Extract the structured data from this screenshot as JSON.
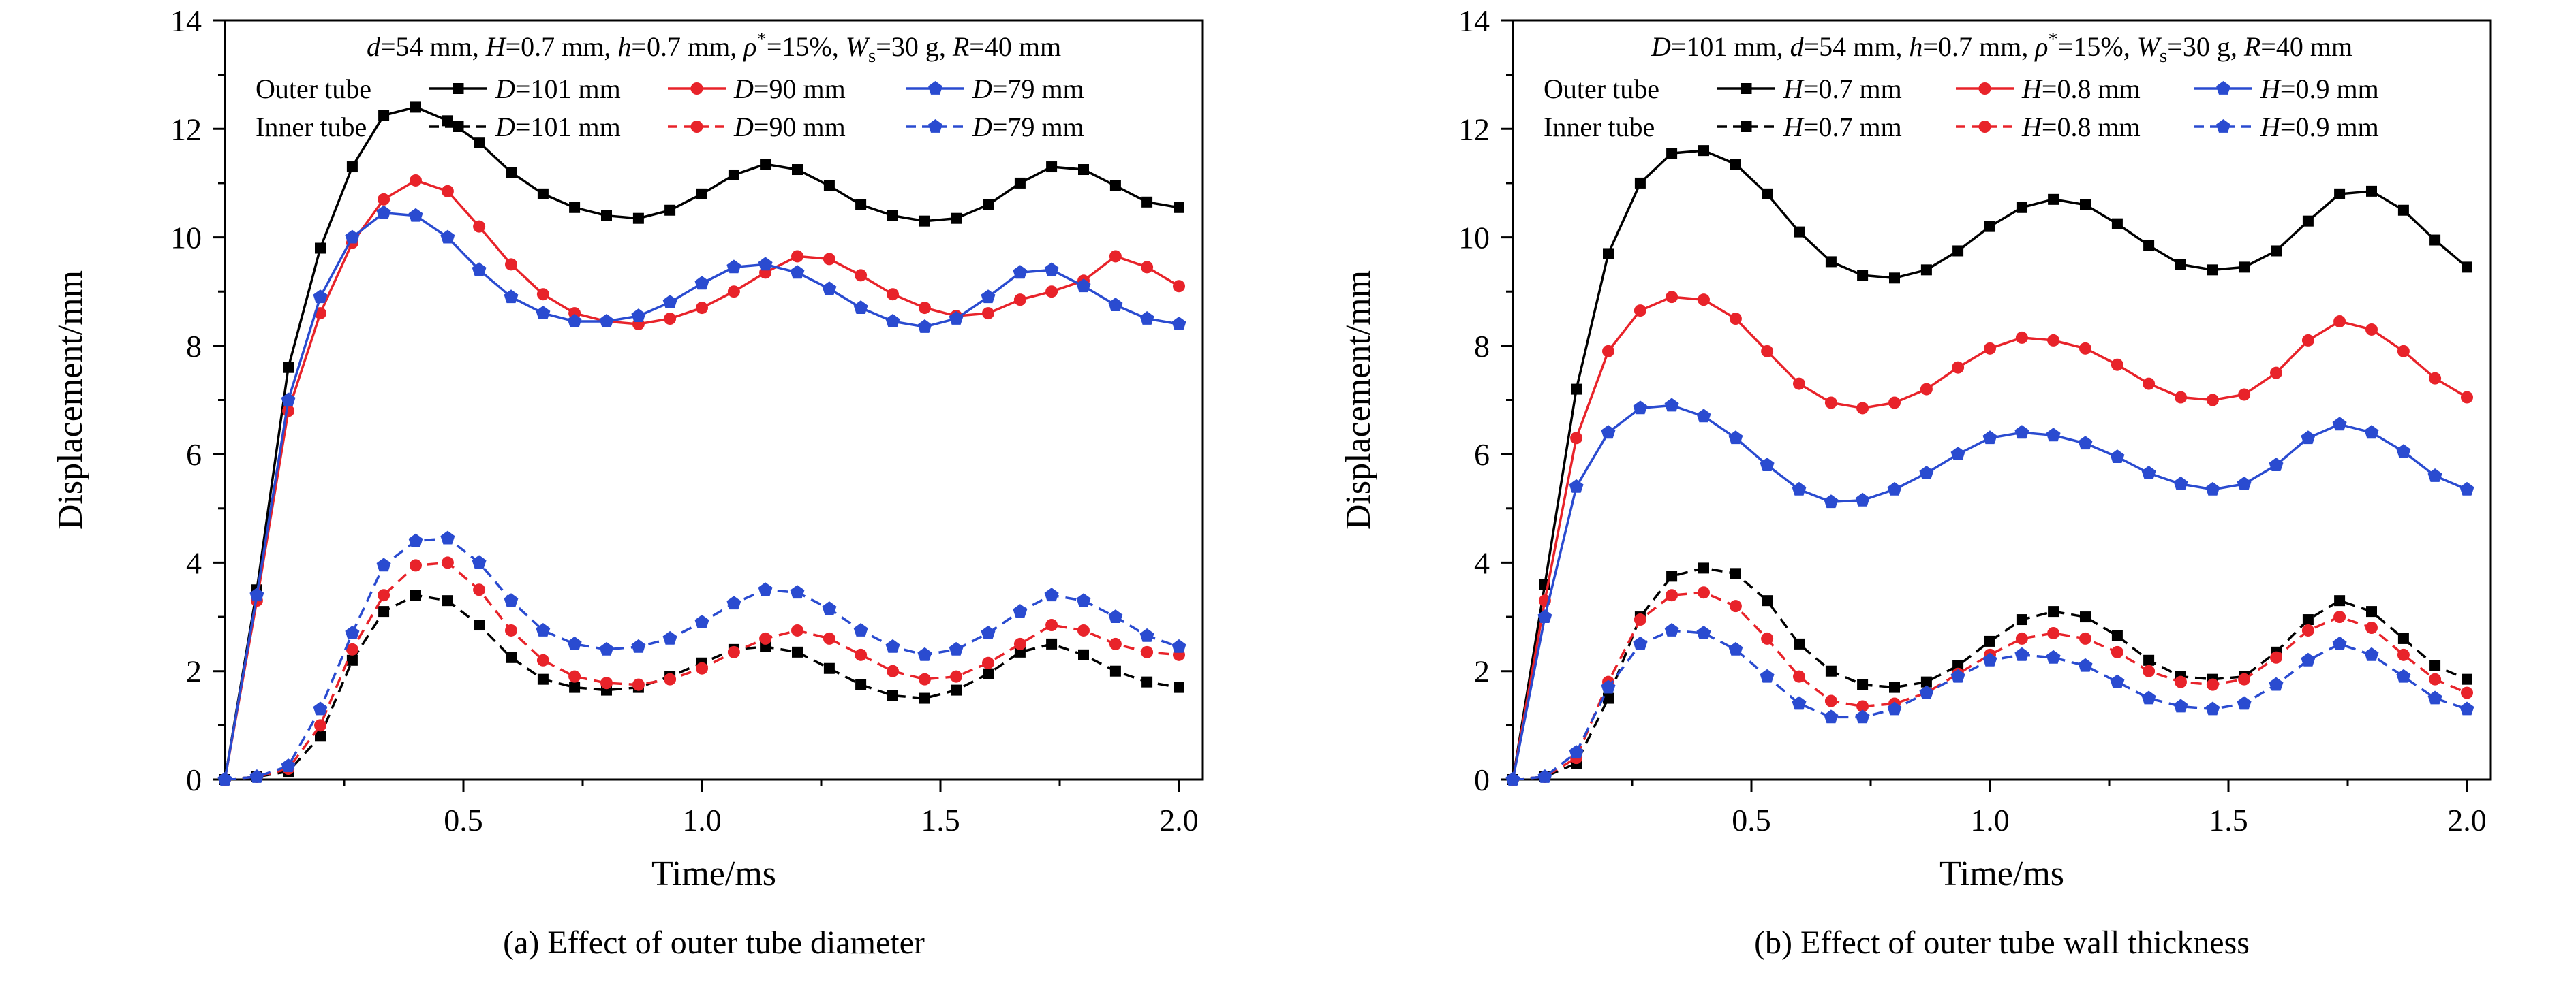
{
  "colors": {
    "black": "#000000",
    "red": "#e8232a",
    "blue": "#2a4bd0",
    "axis": "#000000",
    "background": "#ffffff"
  },
  "chart_data": [
    {
      "type": "line",
      "caption": "(a) Effect of outer tube diameter",
      "header": "d=54 mm, H=0.7 mm, h=0.7 mm, ρ^*=15%, W_s=30 g, R=40 mm",
      "xlabel": "Time/ms",
      "ylabel": "Displacement/mm",
      "xlim": [
        0,
        2.05
      ],
      "ylim": [
        0,
        14
      ],
      "xticks": [
        0.5,
        1.0,
        1.5,
        2.0
      ],
      "xtick_labels": [
        "0.5",
        "1.0",
        "1.5",
        "2.0"
      ],
      "xminor": [
        0.25,
        0.75,
        1.25,
        1.75
      ],
      "yticks": [
        0,
        2,
        4,
        6,
        8,
        10,
        12,
        14
      ],
      "ytick_labels": [
        "0",
        "2",
        "4",
        "6",
        "8",
        "10",
        "12",
        "14"
      ],
      "yminor": [
        1,
        3,
        5,
        7,
        9,
        11,
        13
      ],
      "outer_group_label": "Outer tube",
      "inner_group_label": "Inner tube",
      "x": [
        0,
        0.067,
        0.133,
        0.2,
        0.267,
        0.333,
        0.4,
        0.467,
        0.533,
        0.6,
        0.667,
        0.733,
        0.8,
        0.867,
        0.933,
        1.0,
        1.067,
        1.133,
        1.2,
        1.267,
        1.333,
        1.4,
        1.467,
        1.533,
        1.6,
        1.667,
        1.733,
        1.8,
        1.867,
        1.933,
        2.0
      ],
      "series": [
        {
          "group": "outer",
          "name": "D=101 mm",
          "color": "black",
          "marker": "square",
          "line": "solid",
          "values": [
            0,
            3.5,
            7.6,
            9.8,
            11.3,
            12.25,
            12.4,
            12.15,
            11.75,
            11.2,
            10.8,
            10.55,
            10.4,
            10.35,
            10.5,
            10.8,
            11.15,
            11.35,
            11.25,
            10.95,
            10.6,
            10.4,
            10.3,
            10.35,
            10.6,
            11.0,
            11.3,
            11.25,
            10.95,
            10.65,
            10.55
          ]
        },
        {
          "group": "outer",
          "name": "D=90 mm",
          "color": "red",
          "marker": "circle",
          "line": "solid",
          "values": [
            0,
            3.3,
            6.8,
            8.6,
            9.9,
            10.7,
            11.05,
            10.85,
            10.2,
            9.5,
            8.95,
            8.6,
            8.45,
            8.4,
            8.5,
            8.7,
            9.0,
            9.35,
            9.65,
            9.6,
            9.3,
            8.95,
            8.7,
            8.55,
            8.6,
            8.85,
            9.0,
            9.2,
            9.65,
            9.45,
            9.1
          ]
        },
        {
          "group": "outer",
          "name": "D=79 mm",
          "color": "blue",
          "marker": "pentagon",
          "line": "solid",
          "values": [
            0,
            3.4,
            7.0,
            8.9,
            10.0,
            10.45,
            10.4,
            10.0,
            9.4,
            8.9,
            8.6,
            8.45,
            8.45,
            8.55,
            8.8,
            9.15,
            9.45,
            9.5,
            9.35,
            9.05,
            8.7,
            8.45,
            8.35,
            8.5,
            8.9,
            9.35,
            9.4,
            9.1,
            8.75,
            8.5,
            8.4
          ]
        },
        {
          "group": "inner",
          "name": "D=101 mm",
          "color": "black",
          "marker": "square",
          "line": "dashed",
          "values": [
            0,
            0.05,
            0.15,
            0.8,
            2.2,
            3.1,
            3.4,
            3.3,
            2.85,
            2.25,
            1.85,
            1.7,
            1.65,
            1.7,
            1.9,
            2.15,
            2.4,
            2.45,
            2.35,
            2.05,
            1.75,
            1.55,
            1.5,
            1.65,
            1.95,
            2.35,
            2.5,
            2.3,
            2.0,
            1.8,
            1.7
          ]
        },
        {
          "group": "inner",
          "name": "D=90 mm",
          "color": "red",
          "marker": "circle",
          "line": "dashed",
          "values": [
            0,
            0.05,
            0.2,
            1.0,
            2.4,
            3.4,
            3.95,
            4.0,
            3.5,
            2.75,
            2.2,
            1.9,
            1.78,
            1.75,
            1.85,
            2.05,
            2.35,
            2.6,
            2.75,
            2.6,
            2.3,
            2.0,
            1.85,
            1.9,
            2.15,
            2.5,
            2.85,
            2.75,
            2.5,
            2.35,
            2.3
          ]
        },
        {
          "group": "inner",
          "name": "D=79 mm",
          "color": "blue",
          "marker": "pentagon",
          "line": "dashed",
          "values": [
            0,
            0.05,
            0.25,
            1.3,
            2.7,
            3.95,
            4.4,
            4.45,
            4.0,
            3.3,
            2.75,
            2.5,
            2.4,
            2.45,
            2.6,
            2.9,
            3.25,
            3.5,
            3.45,
            3.15,
            2.75,
            2.45,
            2.3,
            2.4,
            2.7,
            3.1,
            3.4,
            3.3,
            3.0,
            2.65,
            2.45
          ]
        }
      ]
    },
    {
      "type": "line",
      "caption": "(b) Effect of outer tube wall thickness",
      "header": "D=101 mm, d=54 mm, h=0.7 mm, ρ^*=15%, W_s=30 g, R=40 mm",
      "xlabel": "Time/ms",
      "ylabel": "Displacement/mm",
      "xlim": [
        0,
        2.05
      ],
      "ylim": [
        0,
        14
      ],
      "xticks": [
        0.5,
        1.0,
        1.5,
        2.0
      ],
      "xtick_labels": [
        "0.5",
        "1.0",
        "1.5",
        "2.0"
      ],
      "xminor": [
        0.25,
        0.75,
        1.25,
        1.75
      ],
      "yticks": [
        0,
        2,
        4,
        6,
        8,
        10,
        12,
        14
      ],
      "ytick_labels": [
        "0",
        "2",
        "4",
        "6",
        "8",
        "10",
        "12",
        "14"
      ],
      "yminor": [
        1,
        3,
        5,
        7,
        9,
        11,
        13
      ],
      "outer_group_label": "Outer tube",
      "inner_group_label": "Inner tube",
      "x": [
        0,
        0.067,
        0.133,
        0.2,
        0.267,
        0.333,
        0.4,
        0.467,
        0.533,
        0.6,
        0.667,
        0.733,
        0.8,
        0.867,
        0.933,
        1.0,
        1.067,
        1.133,
        1.2,
        1.267,
        1.333,
        1.4,
        1.467,
        1.533,
        1.6,
        1.667,
        1.733,
        1.8,
        1.867,
        1.933,
        2.0
      ],
      "series": [
        {
          "group": "outer",
          "name": "H=0.7 mm",
          "color": "black",
          "marker": "square",
          "line": "solid",
          "values": [
            0,
            3.6,
            7.2,
            9.7,
            11.0,
            11.55,
            11.6,
            11.35,
            10.8,
            10.1,
            9.55,
            9.3,
            9.25,
            9.4,
            9.75,
            10.2,
            10.55,
            10.7,
            10.6,
            10.25,
            9.85,
            9.5,
            9.4,
            9.45,
            9.75,
            10.3,
            10.8,
            10.85,
            10.5,
            9.95,
            9.45
          ]
        },
        {
          "group": "outer",
          "name": "H=0.8 mm",
          "color": "red",
          "marker": "circle",
          "line": "solid",
          "values": [
            0,
            3.3,
            6.3,
            7.9,
            8.65,
            8.9,
            8.85,
            8.5,
            7.9,
            7.3,
            6.95,
            6.85,
            6.95,
            7.2,
            7.6,
            7.95,
            8.15,
            8.1,
            7.95,
            7.65,
            7.3,
            7.05,
            7.0,
            7.1,
            7.5,
            8.1,
            8.45,
            8.3,
            7.9,
            7.4,
            7.05
          ]
        },
        {
          "group": "outer",
          "name": "H=0.9 mm",
          "color": "blue",
          "marker": "pentagon",
          "line": "solid",
          "values": [
            0,
            3.0,
            5.4,
            6.4,
            6.85,
            6.9,
            6.7,
            6.3,
            5.8,
            5.35,
            5.12,
            5.15,
            5.35,
            5.65,
            6.0,
            6.3,
            6.4,
            6.35,
            6.2,
            5.95,
            5.65,
            5.45,
            5.35,
            5.45,
            5.8,
            6.3,
            6.55,
            6.4,
            6.05,
            5.6,
            5.35
          ]
        },
        {
          "group": "inner",
          "name": "H=0.7 mm",
          "color": "black",
          "marker": "square",
          "line": "dashed",
          "values": [
            0,
            0.05,
            0.3,
            1.5,
            3.0,
            3.75,
            3.9,
            3.8,
            3.3,
            2.5,
            2.0,
            1.75,
            1.7,
            1.8,
            2.1,
            2.55,
            2.95,
            3.1,
            3.0,
            2.65,
            2.2,
            1.9,
            1.85,
            1.9,
            2.35,
            2.95,
            3.3,
            3.1,
            2.6,
            2.1,
            1.85
          ]
        },
        {
          "group": "inner",
          "name": "H=0.8 mm",
          "color": "red",
          "marker": "circle",
          "line": "dashed",
          "values": [
            0,
            0.05,
            0.4,
            1.8,
            2.95,
            3.4,
            3.45,
            3.2,
            2.6,
            1.9,
            1.45,
            1.35,
            1.4,
            1.6,
            1.95,
            2.3,
            2.6,
            2.7,
            2.6,
            2.35,
            2.0,
            1.8,
            1.75,
            1.85,
            2.25,
            2.75,
            3.0,
            2.8,
            2.3,
            1.85,
            1.6
          ]
        },
        {
          "group": "inner",
          "name": "H=0.9 mm",
          "color": "blue",
          "marker": "pentagon",
          "line": "dashed",
          "values": [
            0,
            0.05,
            0.5,
            1.7,
            2.5,
            2.75,
            2.7,
            2.4,
            1.9,
            1.4,
            1.15,
            1.15,
            1.3,
            1.6,
            1.9,
            2.2,
            2.3,
            2.25,
            2.1,
            1.8,
            1.5,
            1.35,
            1.3,
            1.4,
            1.75,
            2.2,
            2.5,
            2.3,
            1.9,
            1.5,
            1.3
          ]
        }
      ]
    }
  ]
}
